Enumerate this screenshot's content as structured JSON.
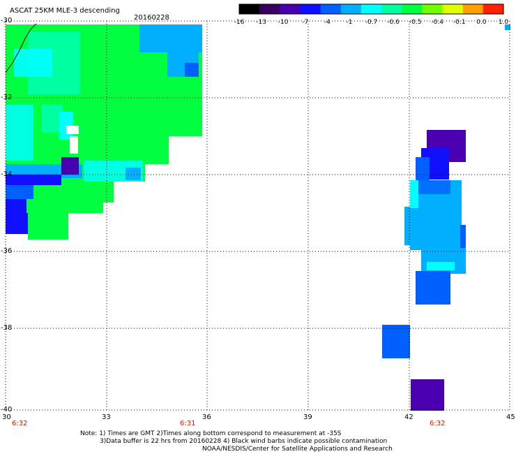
{
  "title": {
    "product": "ASCAT 25KM MLE-3 descending",
    "date": "20160228"
  },
  "colorbar": {
    "tick_labels": [
      "-16",
      "-13",
      "-10",
      "-7",
      "-4",
      "-1",
      "-0.7",
      "-0.6",
      "-0.5",
      "-0.4",
      "-0.1",
      "0.0",
      "1.0"
    ],
    "colors": [
      "#000000",
      "#3a0060",
      "#4a00b0",
      "#1010ff",
      "#0060ff",
      "#00b0ff",
      "#00ffff",
      "#00ffa0",
      "#00ff40",
      "#70ff00",
      "#e0ff00",
      "#ffa000",
      "#ff2000"
    ]
  },
  "axes": {
    "x_ticks": [
      "30",
      "33",
      "36",
      "39",
      "42",
      "45"
    ],
    "y_ticks": [
      "-30",
      "-32",
      "-34",
      "-36",
      "-38",
      "-40"
    ],
    "grid": "dotted"
  },
  "times": [
    {
      "label": "6:32"
    },
    {
      "label": "6:31"
    },
    {
      "label": "6:32"
    }
  ],
  "notes": {
    "line1": "Note: 1) Times are GMT 2)Times along bottom correspond to measurement at -35S",
    "line2": "3)Data buffer is 22 hrs from 20160228 4) Black wind barbs indicate possible contamination",
    "line3": "NOAA/NESDIS/Center for Satellite Applications and Research"
  },
  "palette": {
    "green": "#00ff40",
    "cyan": "#00ffff",
    "sky": "#00b0ff",
    "blue": "#0060ff",
    "deep_blue": "#1010ff",
    "indigo": "#4a00b0",
    "coast": "#000000"
  }
}
